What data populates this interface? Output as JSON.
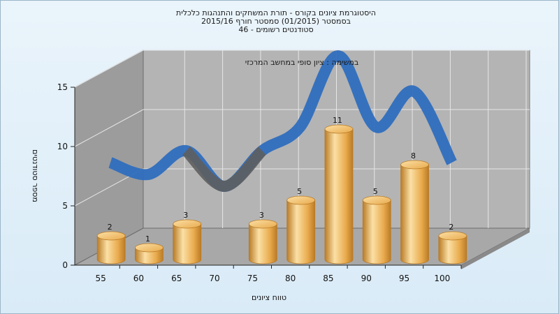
{
  "chart_data": {
    "type": "bar",
    "title_lines": [
      "היסטוגרמת ציונים בקורס - תורת המשחקים והתנהגות כלכלית",
      "בסמסטר  (01/2015)  סמסטר חורף 2015/16",
      "סטודנטים רשומים - 46"
    ],
    "subtitle": "במשימה : ציון סופי במחשב המרכזי",
    "xlabel": "טווח ציונים",
    "ylabel": "מספר סטודנטים",
    "categories": [
      "55",
      "60",
      "65",
      "70",
      "75",
      "80",
      "85",
      "90",
      "95",
      "100"
    ],
    "values": [
      2,
      1,
      3,
      0,
      3,
      5,
      11,
      5,
      8,
      2
    ],
    "ylim": [
      0,
      15
    ],
    "yticks": [
      0,
      5,
      10,
      15
    ],
    "grid": true,
    "colors": {
      "bar_light": "#fbe0a6",
      "bar_mid": "#e9aa4c",
      "bar_dark": "#b97b26",
      "curve": "#2f6ebe",
      "curve_dark": "#5e5e5e",
      "wall": "#b4b4b4",
      "side_wall": "#9c9c9c",
      "floor": "#a8a8a8",
      "grid": "#e6e6e6"
    }
  }
}
